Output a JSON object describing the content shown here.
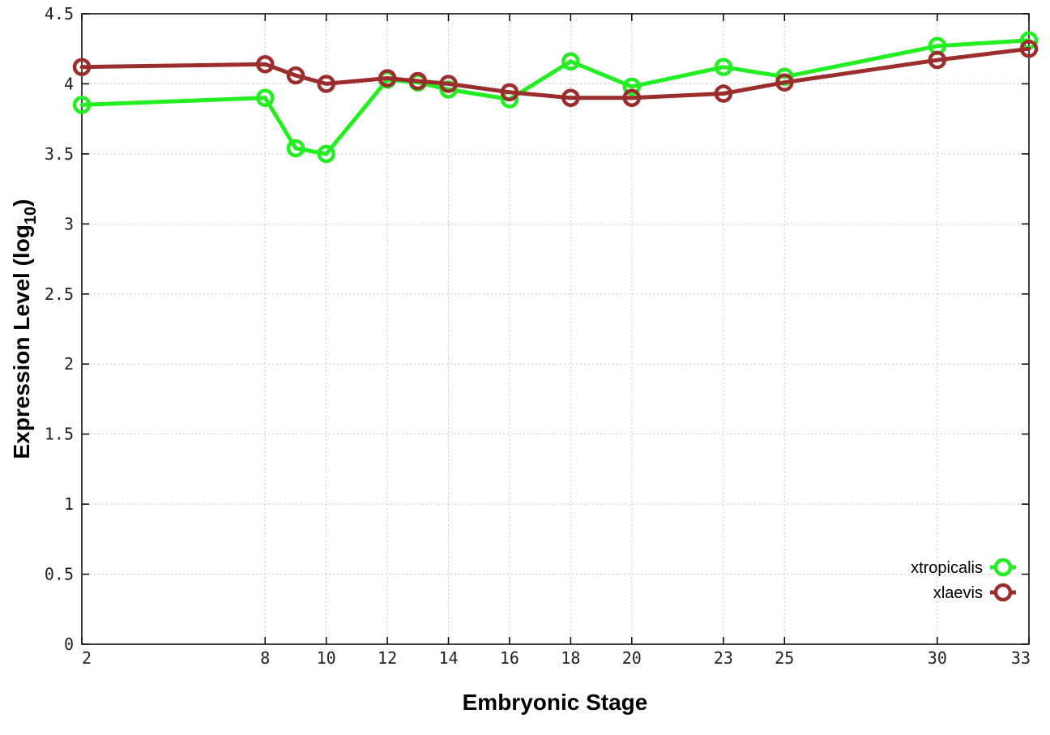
{
  "chart_data": {
    "type": "line",
    "xlabel": "Embryonic Stage",
    "ylabel": {
      "main": "Expression Level (log",
      "sub": "10",
      "close": ")"
    },
    "x": [
      2,
      8,
      9,
      10,
      12,
      13,
      14,
      16,
      18,
      20,
      23,
      25,
      30,
      33
    ],
    "x_ticks": [
      2,
      8,
      10,
      12,
      14,
      16,
      18,
      20,
      23,
      25,
      30,
      33
    ],
    "x_tick_labels": [
      "2",
      "8",
      "10",
      "12",
      "14",
      "16",
      "18",
      "20",
      "23",
      "25",
      "30",
      "33"
    ],
    "xlim": [
      2,
      33
    ],
    "y_ticks": [
      0,
      0.5,
      1,
      1.5,
      2,
      2.5,
      3,
      3.5,
      4,
      4.5
    ],
    "y_tick_labels": [
      "0",
      "0.5",
      "1",
      "1.5",
      "2",
      "2.5",
      "3",
      "3.5",
      "4",
      "4.5"
    ],
    "ylim": [
      0,
      4.5
    ],
    "grid": true,
    "legend_position": "bottom-right",
    "series": [
      {
        "name": "xtropicalis",
        "color": "#22ee22",
        "values": [
          3.85,
          3.9,
          3.54,
          3.5,
          4.03,
          4.01,
          3.96,
          3.89,
          4.16,
          3.98,
          4.12,
          4.05,
          4.27,
          4.31
        ]
      },
      {
        "name": "xlaevis",
        "color": "#9b2d2d",
        "values": [
          4.12,
          4.14,
          4.06,
          4.0,
          4.04,
          4.02,
          4.0,
          3.94,
          3.9,
          3.9,
          3.93,
          4.01,
          4.17,
          4.25
        ]
      }
    ]
  }
}
